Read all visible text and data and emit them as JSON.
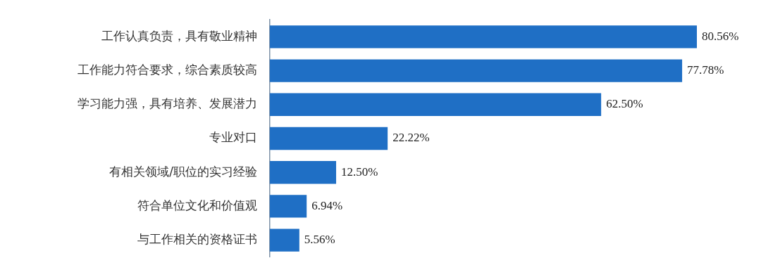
{
  "chart_data": {
    "type": "bar",
    "orientation": "horizontal",
    "categories": [
      "工作认真负责，具有敬业精神",
      "工作能力符合要求，综合素质较高",
      "学习能力强，具有培养、发展潜力",
      "专业对口",
      "有相关领域/职位的实习经验",
      "符合单位文化和价值观",
      "与工作相关的资格证书"
    ],
    "values": [
      80.56,
      77.78,
      62.5,
      22.22,
      12.5,
      6.94,
      5.56
    ],
    "value_labels": [
      "80.56%",
      "77.78%",
      "62.50%",
      "22.22%",
      "12.50%",
      "6.94%",
      "5.56%"
    ],
    "color": "#1f6fc5",
    "tick_labels": "y",
    "legend": false
  }
}
